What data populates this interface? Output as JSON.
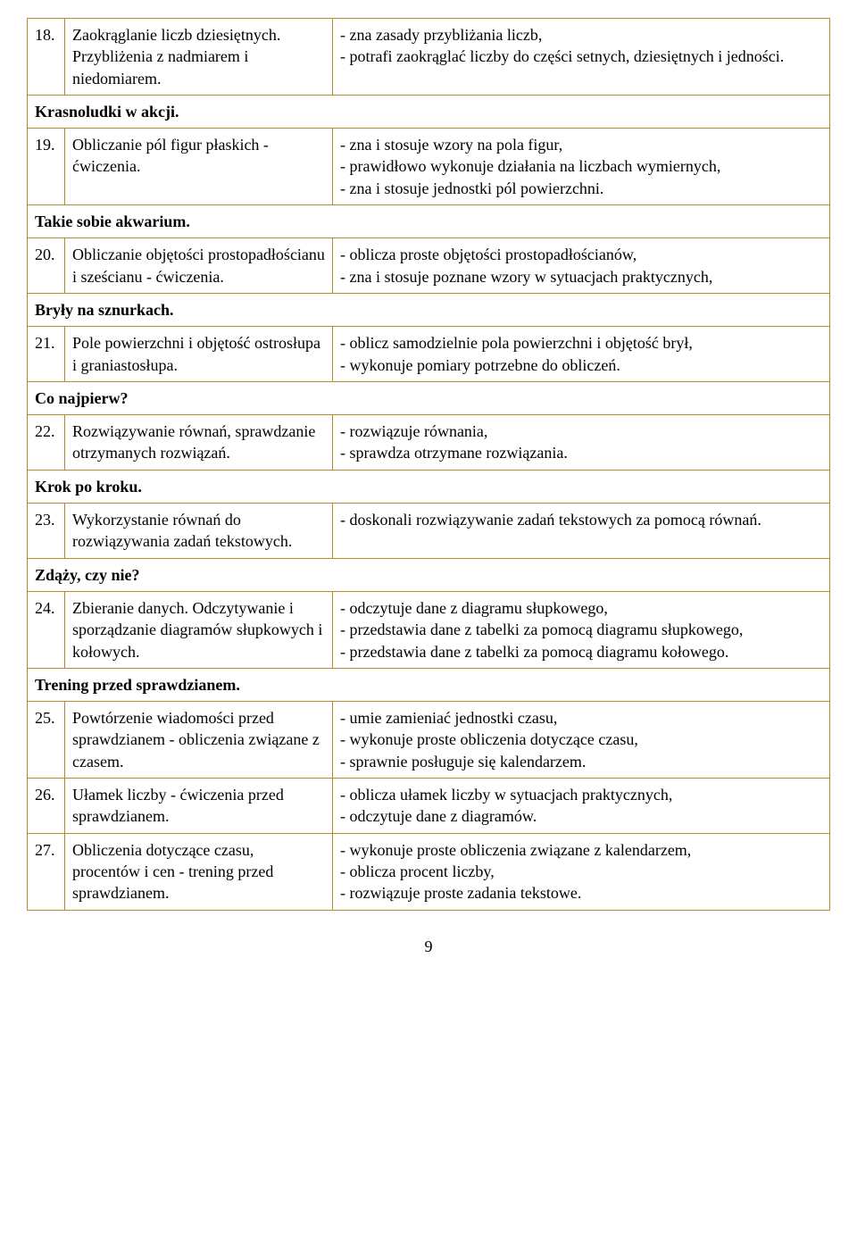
{
  "page_number": "9",
  "rows": [
    {
      "type": "item",
      "num": "18.",
      "left": "Zaokrąglanie liczb dziesiętnych. Przybliżenia z nadmiarem i niedomiarem.",
      "right": "- zna zasady przybliżania liczb,\n- potrafi zaokrąglać liczby do części setnych, dziesiętnych i jedności."
    },
    {
      "type": "section",
      "label": "Krasnoludki w akcji."
    },
    {
      "type": "item",
      "num": "19.",
      "left": "Obliczanie pól figur płaskich - ćwiczenia.",
      "right": "- zna i stosuje wzory na pola figur,\n- prawidłowo wykonuje działania na liczbach wymiernych,\n- zna i stosuje jednostki pól powierzchni."
    },
    {
      "type": "section",
      "label": "Takie sobie akwarium."
    },
    {
      "type": "item",
      "num": "20.",
      "left": "Obliczanie objętości prostopadłościanu i sześcianu - ćwiczenia.",
      "right": "- oblicza proste objętości prostopadłościanów,\n- zna i stosuje poznane wzory w sytuacjach praktycznych,"
    },
    {
      "type": "section",
      "label": "Bryły na sznurkach."
    },
    {
      "type": "item",
      "num": "21.",
      "left": "Pole powierzchni i objętość ostrosłupa i graniastosłupa.",
      "right": "- oblicz samodzielnie pola powierzchni i objętość brył,\n- wykonuje pomiary potrzebne do obliczeń."
    },
    {
      "type": "section",
      "label": "Co najpierw?"
    },
    {
      "type": "item",
      "num": "22.",
      "left": "Rozwiązywanie równań, sprawdzanie otrzymanych rozwiązań.",
      "right": "- rozwiązuje równania,\n- sprawdza otrzymane rozwiązania."
    },
    {
      "type": "section",
      "label": "Krok po kroku."
    },
    {
      "type": "item",
      "num": "23.",
      "left": "Wykorzystanie równań do rozwiązywania zadań tekstowych.",
      "right": "- doskonali rozwiązywanie zadań tekstowych za pomocą równań."
    },
    {
      "type": "section",
      "label": "Zdąży, czy nie?"
    },
    {
      "type": "item",
      "num": "24.",
      "left": "Zbieranie danych. Odczytywanie i sporządzanie diagramów słupkowych i kołowych.",
      "right": "- odczytuje dane z diagramu słupkowego,\n- przedstawia dane z tabelki za pomocą diagramu słupkowego,\n- przedstawia dane z tabelki za pomocą diagramu kołowego."
    },
    {
      "type": "section",
      "label": "Trening przed sprawdzianem."
    },
    {
      "type": "item",
      "num": "25.",
      "left": "Powtórzenie wiadomości przed sprawdzianem - obliczenia związane z czasem.",
      "right": "- umie zamieniać jednostki czasu,\n- wykonuje proste obliczenia dotyczące czasu,\n- sprawnie posługuje się kalendarzem."
    },
    {
      "type": "item",
      "num": "26.",
      "left": "Ułamek liczby - ćwiczenia przed sprawdzianem.",
      "right": "- oblicza ułamek liczby w sytuacjach praktycznych,\n- odczytuje dane z diagramów."
    },
    {
      "type": "item",
      "num": "27.",
      "left": "Obliczenia dotyczące czasu, procentów i cen - trening przed sprawdzianem.",
      "right": "- wykonuje proste obliczenia związane z kalendarzem,\n- oblicza procent liczby,\n- rozwiązuje proste zadania tekstowe."
    }
  ]
}
